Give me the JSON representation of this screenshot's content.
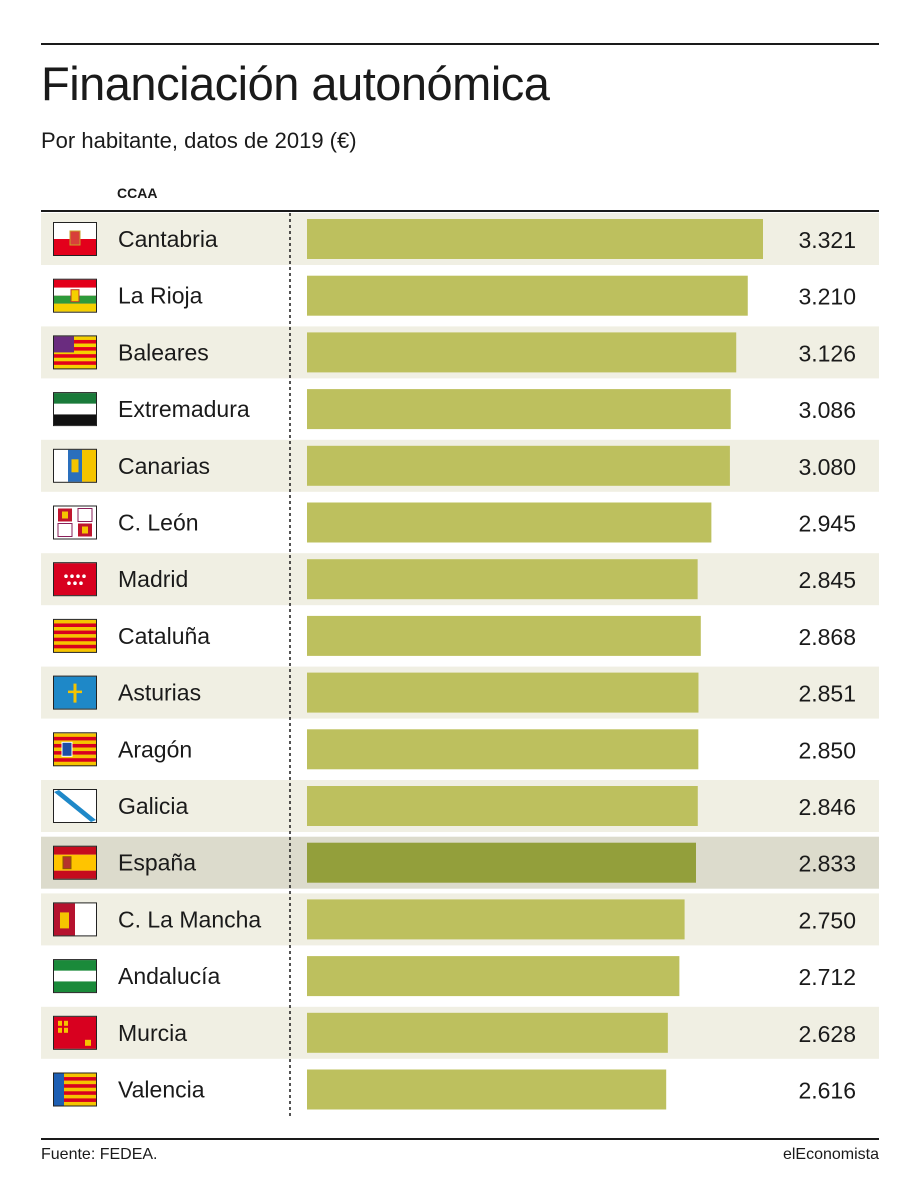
{
  "title": "Financiación autonómica",
  "subtitle": "Por habitante, datos de 2019 (€)",
  "column_header": "CCAA",
  "source": "Fuente: FEDEA.",
  "brand": "elEconomista",
  "colors": {
    "bar": "#bdc05e",
    "bar_highlight": "#939f3b",
    "row_band": "#f0efe3",
    "row_highlight": "#dcdbcc",
    "text": "#1a1a1a"
  },
  "chart_data": {
    "type": "bar",
    "orientation": "horizontal",
    "title": "Financiación autonómica",
    "subtitle": "Por habitante, datos de 2019 (€)",
    "xlabel": "",
    "ylabel": "CCAA",
    "xlim": [
      0,
      3321
    ],
    "grid": false,
    "legend": "none",
    "categories": [
      "Cantabria",
      "La Rioja",
      "Baleares",
      "Extremadura",
      "Canarias",
      "C. León",
      "Madrid",
      "Cataluña",
      "Asturias",
      "Aragón",
      "Galicia",
      "España",
      "C. La Mancha",
      "Andalucía",
      "Murcia",
      "Valencia"
    ],
    "values": [
      3321,
      3210,
      3126,
      3086,
      3080,
      2945,
      2845,
      2868,
      2851,
      2850,
      2846,
      2833,
      2750,
      2712,
      2628,
      2616
    ],
    "value_labels": [
      "3.321",
      "3.210",
      "3.126",
      "3.086",
      "3.080",
      "2.945",
      "2.845",
      "2.868",
      "2.851",
      "2.850",
      "2.846",
      "2.833",
      "2.750",
      "2.712",
      "2.628",
      "2.616"
    ],
    "highlight": "España",
    "flag_icons": [
      "flag-cantabria-icon",
      "flag-la-rioja-icon",
      "flag-baleares-icon",
      "flag-extremadura-icon",
      "flag-canarias-icon",
      "flag-castilla-leon-icon",
      "flag-madrid-icon",
      "flag-cataluna-icon",
      "flag-asturias-icon",
      "flag-aragon-icon",
      "flag-galicia-icon",
      "flag-espana-icon",
      "flag-castilla-la-mancha-icon",
      "flag-andalucia-icon",
      "flag-murcia-icon",
      "flag-valencia-icon"
    ]
  }
}
